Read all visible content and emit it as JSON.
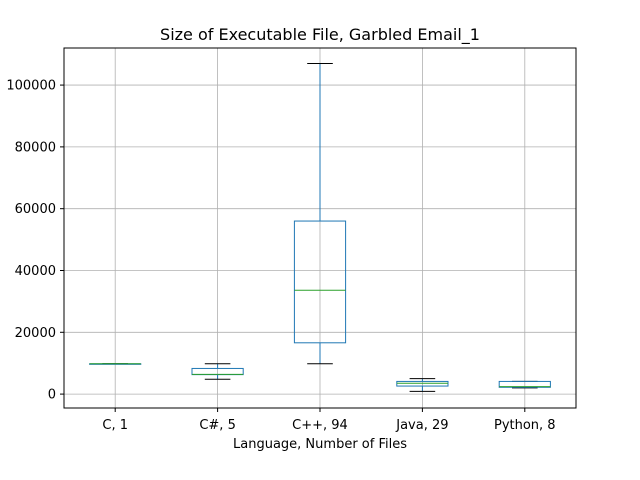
{
  "chart_data": {
    "type": "box",
    "title": "Size of Executable File, Garbled Email_1",
    "xlabel": "Language, Number of Files",
    "ylabel": "",
    "ylim": [
      -4500,
      112000
    ],
    "yticks": [
      0,
      20000,
      40000,
      60000,
      80000,
      100000
    ],
    "ytick_labels": [
      "0",
      "20000",
      "40000",
      "60000",
      "80000",
      "100000"
    ],
    "grid": true,
    "colors": {
      "box": "#1f77b4",
      "median": "#2ca02c",
      "whisker_cap": "#000000",
      "grid": "#b0b0b0"
    },
    "categories": [
      "C, 1",
      "C#, 5",
      "C++, 94",
      "Java, 29",
      "Python, 8"
    ],
    "boxes": [
      {
        "label": "C, 1",
        "whislo": 9800,
        "q1": 9800,
        "med": 9800,
        "q3": 9800,
        "whishi": 9800
      },
      {
        "label": "C#, 5",
        "whislo": 4800,
        "q1": 6300,
        "med": 6400,
        "q3": 8300,
        "whishi": 9800
      },
      {
        "label": "C++, 94",
        "whislo": 9800,
        "q1": 16600,
        "med": 33600,
        "q3": 56000,
        "whishi": 107000
      },
      {
        "label": "Java, 29",
        "whislo": 900,
        "q1": 2600,
        "med": 3500,
        "q3": 4100,
        "whishi": 5000
      },
      {
        "label": "Python, 8",
        "whislo": 2000,
        "q1": 2200,
        "med": 2400,
        "q3": 4100,
        "whishi": 4100
      }
    ]
  }
}
